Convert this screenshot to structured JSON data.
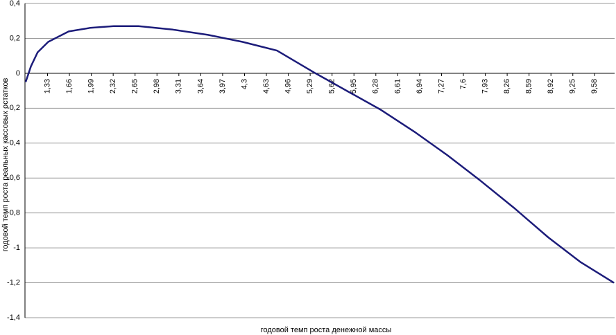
{
  "chart_data": {
    "type": "line",
    "x_label": "годовой темп роста денежной массы",
    "y_label": "годовой темп роста реальных кассовых остатков",
    "x": [
      1.0,
      1.08,
      1.18,
      1.34,
      1.65,
      1.97,
      2.33,
      2.7,
      3.22,
      3.75,
      4.27,
      4.79,
      5.37,
      5.84,
      6.36,
      6.88,
      7.36,
      7.84,
      8.36,
      8.88,
      9.36,
      9.87
    ],
    "series": [
      {
        "color": "#1c1c7a",
        "values": [
          -0.05,
          0.04,
          0.12,
          0.18,
          0.24,
          0.26,
          0.27,
          0.27,
          0.25,
          0.22,
          0.18,
          0.13,
          0.0,
          -0.1,
          -0.21,
          -0.34,
          -0.47,
          -0.61,
          -0.77,
          -0.94,
          -1.08,
          -1.2
        ]
      }
    ],
    "xlim": [
      0.99,
      9.88
    ],
    "xticks": [
      {
        "value": 1.33,
        "label": "1,33"
      },
      {
        "value": 1.66,
        "label": "1,66"
      },
      {
        "value": 1.99,
        "label": "1,99"
      },
      {
        "value": 2.32,
        "label": "2,32"
      },
      {
        "value": 2.65,
        "label": "2,65"
      },
      {
        "value": 2.98,
        "label": "2,98"
      },
      {
        "value": 3.31,
        "label": "3,31"
      },
      {
        "value": 3.64,
        "label": "3,64"
      },
      {
        "value": 3.97,
        "label": "3,97"
      },
      {
        "value": 4.3,
        "label": "4,3"
      },
      {
        "value": 4.63,
        "label": "4,63"
      },
      {
        "value": 4.96,
        "label": "4,96"
      },
      {
        "value": 5.29,
        "label": "5,29"
      },
      {
        "value": 5.62,
        "label": "5,62"
      },
      {
        "value": 5.95,
        "label": "5,95"
      },
      {
        "value": 6.28,
        "label": "6,28"
      },
      {
        "value": 6.61,
        "label": "6,61"
      },
      {
        "value": 6.94,
        "label": "6,94"
      },
      {
        "value": 7.27,
        "label": "7,27"
      },
      {
        "value": 7.6,
        "label": "7,6"
      },
      {
        "value": 7.93,
        "label": "7,93"
      },
      {
        "value": 8.26,
        "label": "8,26"
      },
      {
        "value": 8.59,
        "label": "8,59"
      },
      {
        "value": 8.92,
        "label": "8,92"
      },
      {
        "value": 9.25,
        "label": "9,25"
      },
      {
        "value": 9.58,
        "label": "9,58"
      }
    ],
    "ylim": [
      -1.4,
      0.4
    ],
    "yticks": [
      {
        "value": 0.4,
        "label": "0,4"
      },
      {
        "value": 0.2,
        "label": "0,2"
      },
      0,
      {
        "value": -0.2,
        "label": "-0,2"
      },
      {
        "value": -0.4,
        "label": "-0,4"
      },
      {
        "value": -0.6,
        "label": "-0,6"
      },
      {
        "value": -0.8,
        "label": "-0,8"
      },
      -1,
      {
        "value": -1.2,
        "label": "-1,2"
      },
      {
        "value": -1.4,
        "label": "-1,4"
      }
    ],
    "grid": true
  }
}
